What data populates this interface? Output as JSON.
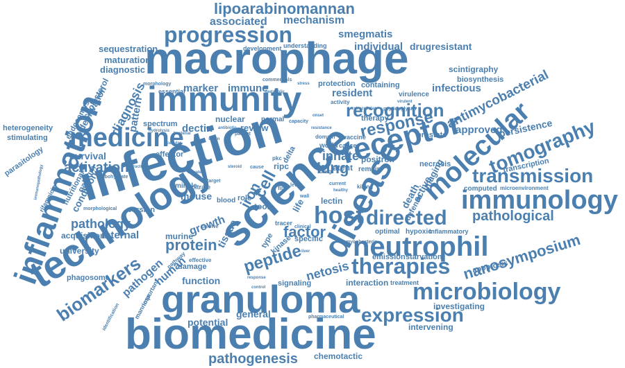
{
  "word_cloud": {
    "color": "#4a7fb0",
    "words": [
      {
        "id": "macrophage",
        "text": "macrophage"
      },
      {
        "id": "infection",
        "text": "infection"
      },
      {
        "id": "science",
        "text": "science"
      },
      {
        "id": "technology",
        "text": "technology"
      },
      {
        "id": "granuloma",
        "text": "granuloma"
      },
      {
        "id": "biomedicine",
        "text": "biomedicine"
      },
      {
        "id": "inflammation",
        "text": "inflammation"
      },
      {
        "id": "immunity",
        "text": "immunity"
      },
      {
        "id": "disease",
        "text": "disease"
      },
      {
        "id": "neutrophil",
        "text": "neutrophil"
      },
      {
        "id": "medicine",
        "text": "medicine"
      },
      {
        "id": "receptor",
        "text": "receptor"
      },
      {
        "id": "molecular",
        "text": "molecular"
      },
      {
        "id": "immunology",
        "text": "immunology"
      },
      {
        "id": "progression",
        "text": "progression"
      },
      {
        "id": "microbiology",
        "text": "microbiology"
      },
      {
        "id": "therapies",
        "text": "therapies"
      },
      {
        "id": "expression",
        "text": "expression"
      },
      {
        "id": "host",
        "text": "host"
      },
      {
        "id": "directed",
        "text": "directed"
      },
      {
        "id": "recognition",
        "text": "recognition"
      },
      {
        "id": "response",
        "text": "response"
      },
      {
        "id": "tomography",
        "text": "tomography"
      },
      {
        "id": "transmission",
        "text": "transmission"
      },
      {
        "id": "biomarkers",
        "text": "biomarkers"
      },
      {
        "id": "lipoarabinomannan",
        "text": "lipoarabinomannan"
      },
      {
        "id": "nanosymposium",
        "text": "nanosymposium"
      },
      {
        "id": "pathogenesis",
        "text": "pathogenesis"
      },
      {
        "id": "peptide",
        "text": "peptide"
      },
      {
        "id": "pathological",
        "text": "pathological"
      },
      {
        "id": "antimycobacterial",
        "text": "antimycobacterial"
      },
      {
        "id": "activation",
        "text": "activation"
      },
      {
        "id": "lung",
        "text": "lung"
      },
      {
        "id": "innate",
        "text": "innate"
      },
      {
        "id": "factor",
        "text": "factor"
      },
      {
        "id": "netosis",
        "text": "netosis"
      },
      {
        "id": "protein",
        "text": "protein"
      },
      {
        "id": "pathology",
        "text": "pathology"
      },
      {
        "id": "associated",
        "text": "associated"
      },
      {
        "id": "mechanism",
        "text": "mechanism"
      },
      {
        "id": "smegmatis",
        "text": "smegmatis"
      },
      {
        "id": "individual",
        "text": "individual"
      },
      {
        "id": "drugresistant",
        "text": "drugresistant"
      },
      {
        "id": "sequestration",
        "text": "sequestration"
      },
      {
        "id": "maturation",
        "text": "maturation"
      },
      {
        "id": "diagnostic",
        "text": "diagnostic"
      },
      {
        "id": "diagnosis",
        "text": "diagnosis"
      },
      {
        "id": "deprivation",
        "text": "deprivation"
      },
      {
        "id": "cholesterol",
        "text": "cholesterol"
      },
      {
        "id": "endosomes",
        "text": "endosomes"
      },
      {
        "id": "pattern",
        "text": "pattern"
      },
      {
        "id": "marker",
        "text": "marker"
      },
      {
        "id": "immune",
        "text": "immune"
      },
      {
        "id": "resident",
        "text": "resident"
      },
      {
        "id": "infectious",
        "text": "infectious"
      },
      {
        "id": "scintigraphy",
        "text": "scintigraphy"
      },
      {
        "id": "biosynthesis",
        "text": "biosynthesis"
      },
      {
        "id": "containing",
        "text": "containing"
      },
      {
        "id": "protection",
        "text": "protection"
      },
      {
        "id": "virulence",
        "text": "virulence"
      },
      {
        "id": "development",
        "text": "development"
      },
      {
        "id": "understanding",
        "text": "understanding"
      },
      {
        "id": "heterogeneity",
        "text": "heterogeneity"
      },
      {
        "id": "stimulating",
        "text": "stimulating"
      },
      {
        "id": "parasitology",
        "text": "parasitology"
      },
      {
        "id": "dectin",
        "text": "dectin"
      },
      {
        "id": "nuclear",
        "text": "nuclear"
      },
      {
        "id": "review",
        "text": "review"
      },
      {
        "id": "normal",
        "text": "normal"
      },
      {
        "id": "spectrum",
        "text": "spectrum"
      },
      {
        "id": "survival",
        "text": "survival"
      },
      {
        "id": "effector",
        "text": "effector"
      },
      {
        "id": "essential",
        "text": "essential"
      },
      {
        "id": "approved",
        "text": "approved"
      },
      {
        "id": "persistence",
        "text": "persistence"
      },
      {
        "id": "prostate",
        "text": "prostate"
      },
      {
        "id": "therapy",
        "text": "therapy"
      },
      {
        "id": "positron",
        "text": "positron"
      },
      {
        "id": "latent",
        "text": "latent"
      },
      {
        "id": "remain",
        "text": "remain"
      },
      {
        "id": "transcription",
        "text": "transcription"
      },
      {
        "id": "computed",
        "text": "computed"
      },
      {
        "id": "microenvironment",
        "text": "microenvironment"
      },
      {
        "id": "ripc",
        "text": "ripc"
      },
      {
        "id": "delta",
        "text": "delta"
      },
      {
        "id": "cell",
        "text": "cell"
      },
      {
        "id": "iron",
        "text": "iron"
      },
      {
        "id": "mincle",
        "text": "mincle"
      },
      {
        "id": "citrate",
        "text": "citrate"
      },
      {
        "id": "mouse",
        "text": "mouse"
      },
      {
        "id": "blood",
        "text": "blood"
      },
      {
        "id": "role",
        "text": "role"
      },
      {
        "id": "tool",
        "text": "tool"
      },
      {
        "id": "life",
        "text": "life"
      },
      {
        "id": "lectin",
        "text": "lectin"
      },
      {
        "id": "death",
        "text": "death"
      },
      {
        "id": "active",
        "text": "active"
      },
      {
        "id": "imaging",
        "text": "imaging"
      },
      {
        "id": "necrosis",
        "text": "necrosis"
      },
      {
        "id": "defense",
        "text": "defense"
      },
      {
        "id": "version",
        "text": "version"
      },
      {
        "id": "nutritional",
        "text": "nutritional"
      },
      {
        "id": "condition",
        "text": "condition"
      },
      {
        "id": "gallium",
        "text": "gallium"
      },
      {
        "id": "rifampicin",
        "text": "rifampicin"
      },
      {
        "id": "acquisition",
        "text": "acquisition"
      },
      {
        "id": "internal",
        "text": "internal"
      },
      {
        "id": "university",
        "text": "university"
      },
      {
        "id": "growth",
        "text": "growth"
      },
      {
        "id": "tissue",
        "text": "tissue"
      },
      {
        "id": "murine",
        "text": "murine"
      },
      {
        "id": "human",
        "text": "human"
      },
      {
        "id": "pathogen",
        "text": "pathogen"
      },
      {
        "id": "damage",
        "text": "damage"
      },
      {
        "id": "phagosome",
        "text": "phagosome"
      },
      {
        "id": "important",
        "text": "important"
      },
      {
        "id": "mannose",
        "text": "mannose"
      },
      {
        "id": "function",
        "text": "function"
      },
      {
        "id": "potential",
        "text": "potential"
      },
      {
        "id": "general",
        "text": "general"
      },
      {
        "id": "type",
        "text": "type"
      },
      {
        "id": "kinase",
        "text": "kinase"
      },
      {
        "id": "specific",
        "text": "specific"
      },
      {
        "id": "optimal",
        "text": "optimal"
      },
      {
        "id": "hypoxic",
        "text": "hypoxic"
      },
      {
        "id": "inflammatory",
        "text": "inflammatory"
      },
      {
        "id": "emission",
        "text": "emission"
      },
      {
        "id": "starvation",
        "text": "starvation"
      },
      {
        "id": "apoptosis",
        "text": "apoptosis"
      },
      {
        "id": "interaction",
        "text": "interaction"
      },
      {
        "id": "treatment",
        "text": "treatment"
      },
      {
        "id": "signaling",
        "text": "signaling"
      },
      {
        "id": "investigating",
        "text": "investigating"
      },
      {
        "id": "intervening",
        "text": "intervening"
      },
      {
        "id": "chemotactic",
        "text": "chemotactic"
      },
      {
        "id": "vaccine",
        "text": "vaccine"
      },
      {
        "id": "cancer",
        "text": "cancer"
      },
      {
        "id": "world",
        "text": "world"
      },
      {
        "id": "domain",
        "text": "domain"
      },
      {
        "id": "activity",
        "text": "activity"
      },
      {
        "id": "killing",
        "text": "killing"
      },
      {
        "id": "clinical",
        "text": "clinical"
      },
      {
        "id": "tracer",
        "text": "tracer"
      },
      {
        "id": "morphology",
        "text": "morphology"
      },
      {
        "id": "morphological",
        "text": "morphological"
      },
      {
        "id": "carbohydrate",
        "text": "carbohydrate"
      },
      {
        "id": "pathway",
        "text": "pathway"
      },
      {
        "id": "effective",
        "text": "effective"
      },
      {
        "id": "identification",
        "text": "identification"
      },
      {
        "id": "pharmaceutical",
        "text": "pharmaceutical"
      },
      {
        "id": "mycobacteria",
        "text": "mycobacteria"
      },
      {
        "id": "current",
        "text": "current"
      },
      {
        "id": "fine",
        "text": "fine"
      },
      {
        "id": "cause",
        "text": "cause"
      },
      {
        "id": "drug",
        "text": "drug"
      },
      {
        "id": "survive",
        "text": "survive"
      },
      {
        "id": "level",
        "text": "level"
      },
      {
        "id": "pkc",
        "text": "pkc"
      },
      {
        "id": "target",
        "text": "target"
      },
      {
        "id": "patient",
        "text": "patient"
      },
      {
        "id": "wall",
        "text": "wall"
      },
      {
        "id": "capacity",
        "text": "capacity"
      },
      {
        "id": "peptidoglycan",
        "text": "peptidoglycan"
      },
      {
        "id": "extracellular",
        "text": "extracellular"
      },
      {
        "id": "commensals",
        "text": "commensals"
      },
      {
        "id": "antibiotic",
        "text": "antibiotic"
      },
      {
        "id": "healthy",
        "text": "healthy"
      },
      {
        "id": "resistance",
        "text": "resistance"
      },
      {
        "id": "virulent",
        "text": "virulent"
      },
      {
        "id": "stress",
        "text": "stress"
      },
      {
        "id": "strain",
        "text": "strain"
      },
      {
        "id": "hydrolysis",
        "text": "hydrolysis"
      },
      {
        "id": "bacterial",
        "text": "bacterial"
      },
      {
        "id": "cellular",
        "text": "cellular"
      },
      {
        "id": "immunopathology",
        "text": "immunopathology"
      },
      {
        "id": "structural",
        "text": "structural"
      },
      {
        "id": "elevated",
        "text": "elevated"
      },
      {
        "id": "steroid",
        "text": "steroid"
      },
      {
        "id": "onset",
        "text": "onset"
      },
      {
        "id": "metabolic",
        "text": "metabolic"
      },
      {
        "id": "response2",
        "text": "response"
      },
      {
        "id": "control",
        "text": "control"
      },
      {
        "id": "liver",
        "text": "liver"
      }
    ]
  }
}
